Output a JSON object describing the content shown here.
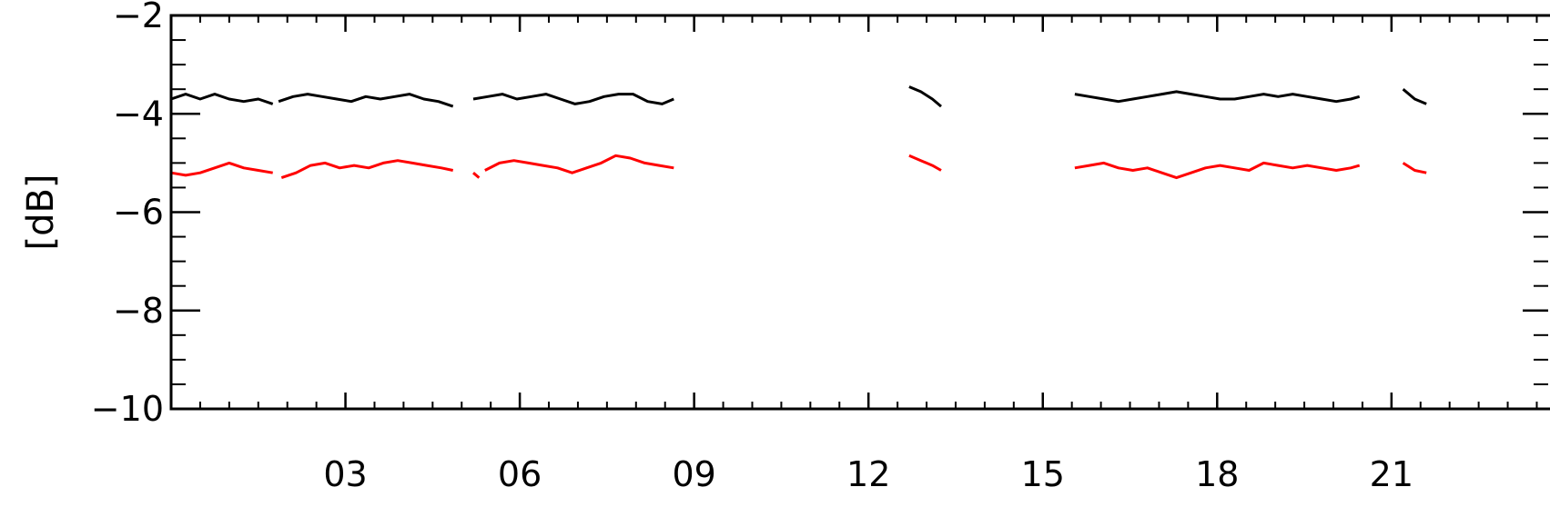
{
  "chart_data": {
    "type": "line",
    "title": "",
    "xlabel": "",
    "ylabel": "[dB]",
    "xlim": [
      0,
      24
    ],
    "ylim": [
      -10,
      -2
    ],
    "x_ticks": [
      3,
      6,
      9,
      12,
      15,
      18,
      21
    ],
    "x_tick_labels": [
      "03",
      "06",
      "09",
      "12",
      "15",
      "18",
      "21"
    ],
    "y_ticks": [
      -2,
      -4,
      -6,
      -8,
      -10
    ],
    "y_tick_labels": [
      "−2",
      "−4",
      "−6",
      "−8",
      "−10"
    ],
    "grid": false,
    "series": [
      {
        "color": "#000000",
        "segments": [
          {
            "x": [
              0.0,
              0.25,
              0.5,
              0.75,
              1.0,
              1.25,
              1.5,
              1.75
            ],
            "y": [
              -3.7,
              -3.6,
              -3.7,
              -3.6,
              -3.7,
              -3.75,
              -3.7,
              -3.8
            ]
          },
          {
            "x": [
              1.85,
              2.1,
              2.35,
              2.6,
              2.85,
              3.1,
              3.35,
              3.6,
              3.85,
              4.1,
              4.35,
              4.6,
              4.85
            ],
            "y": [
              -3.75,
              -3.65,
              -3.6,
              -3.65,
              -3.7,
              -3.75,
              -3.65,
              -3.7,
              -3.65,
              -3.6,
              -3.7,
              -3.75,
              -3.85
            ]
          },
          {
            "x": [
              5.2,
              5.45,
              5.7,
              5.95,
              6.2,
              6.45,
              6.7,
              6.95,
              7.2,
              7.45,
              7.7,
              7.95,
              8.2,
              8.45,
              8.65
            ],
            "y": [
              -3.7,
              -3.65,
              -3.6,
              -3.7,
              -3.65,
              -3.6,
              -3.7,
              -3.8,
              -3.75,
              -3.65,
              -3.6,
              -3.6,
              -3.75,
              -3.8,
              -3.7
            ]
          },
          {
            "x": [
              12.7,
              12.9,
              13.1,
              13.25
            ],
            "y": [
              -3.45,
              -3.55,
              -3.7,
              -3.85
            ]
          },
          {
            "x": [
              15.55,
              15.8,
              16.05,
              16.3,
              16.55,
              16.8,
              17.05,
              17.3,
              17.55,
              17.8,
              18.05,
              18.3,
              18.55,
              18.8,
              19.05,
              19.3,
              19.55,
              19.8,
              20.05,
              20.3,
              20.45
            ],
            "y": [
              -3.6,
              -3.65,
              -3.7,
              -3.75,
              -3.7,
              -3.65,
              -3.6,
              -3.55,
              -3.6,
              -3.65,
              -3.7,
              -3.7,
              -3.65,
              -3.6,
              -3.65,
              -3.6,
              -3.65,
              -3.7,
              -3.75,
              -3.7,
              -3.65
            ]
          },
          {
            "x": [
              21.2,
              21.4,
              21.6
            ],
            "y": [
              -3.5,
              -3.7,
              -3.8
            ]
          }
        ]
      },
      {
        "color": "#ff0000",
        "segments": [
          {
            "x": [
              0.0,
              0.25,
              0.5,
              0.75,
              1.0,
              1.25,
              1.5,
              1.75
            ],
            "y": [
              -5.2,
              -5.25,
              -5.2,
              -5.1,
              -5.0,
              -5.1,
              -5.15,
              -5.2
            ]
          },
          {
            "x": [
              1.9,
              2.15,
              2.4,
              2.65,
              2.9,
              3.15,
              3.4,
              3.65,
              3.9,
              4.15,
              4.4,
              4.65,
              4.85
            ],
            "y": [
              -5.3,
              -5.2,
              -5.05,
              -5.0,
              -5.1,
              -5.05,
              -5.1,
              -5.0,
              -4.95,
              -5.0,
              -5.05,
              -5.1,
              -5.15
            ]
          },
          {
            "x": [
              5.2,
              5.3
            ],
            "y": [
              -5.2,
              -5.3
            ]
          },
          {
            "x": [
              5.4,
              5.65,
              5.9,
              6.15,
              6.4,
              6.65,
              6.9,
              7.15,
              7.4,
              7.65,
              7.9,
              8.15,
              8.4,
              8.65
            ],
            "y": [
              -5.15,
              -5.0,
              -4.95,
              -5.0,
              -5.05,
              -5.1,
              -5.2,
              -5.1,
              -5.0,
              -4.85,
              -4.9,
              -5.0,
              -5.05,
              -5.1
            ]
          },
          {
            "x": [
              12.7,
              12.9,
              13.1,
              13.25
            ],
            "y": [
              -4.85,
              -4.95,
              -5.05,
              -5.15
            ]
          },
          {
            "x": [
              15.55,
              15.8,
              16.05,
              16.3,
              16.55,
              16.8,
              17.05,
              17.3,
              17.55,
              17.8,
              18.05,
              18.3,
              18.55,
              18.8,
              19.05,
              19.3,
              19.55,
              19.8,
              20.05,
              20.3,
              20.45
            ],
            "y": [
              -5.1,
              -5.05,
              -5.0,
              -5.1,
              -5.15,
              -5.1,
              -5.2,
              -5.3,
              -5.2,
              -5.1,
              -5.05,
              -5.1,
              -5.15,
              -5.0,
              -5.05,
              -5.1,
              -5.05,
              -5.1,
              -5.15,
              -5.1,
              -5.05
            ]
          },
          {
            "x": [
              21.2,
              21.4,
              21.6
            ],
            "y": [
              -5.0,
              -5.15,
              -5.2
            ]
          }
        ]
      }
    ]
  }
}
